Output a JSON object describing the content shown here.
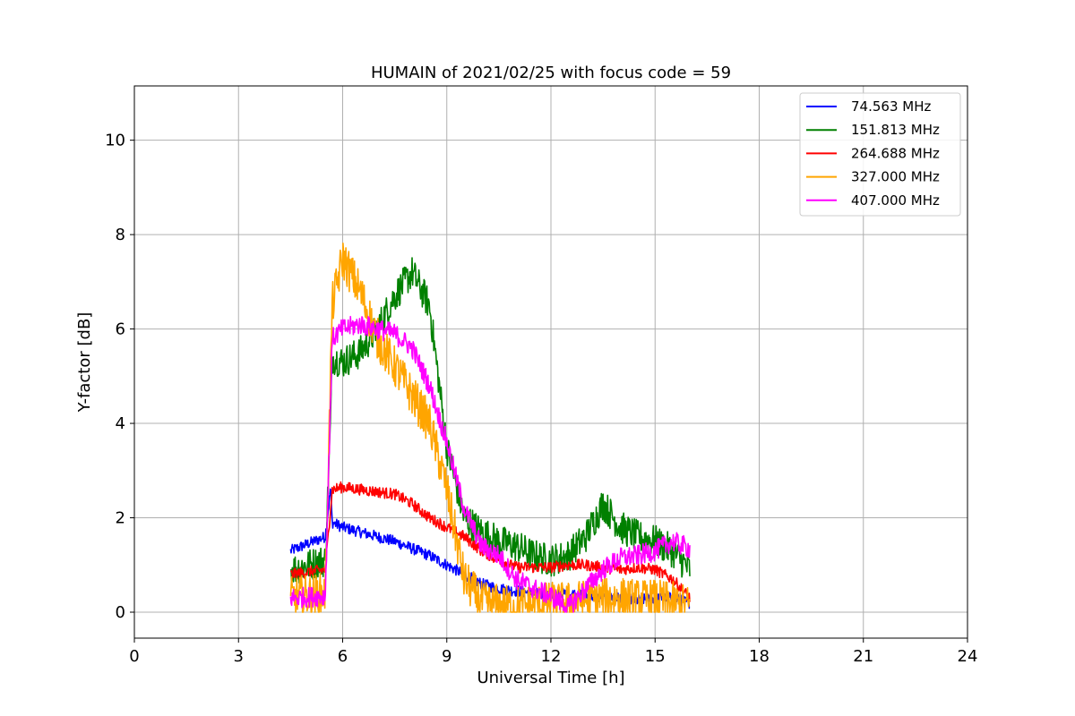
{
  "chart_data": {
    "type": "line",
    "title": "HUMAIN of 2021/02/25 with focus code = 59",
    "xlabel": "Universal Time [h]",
    "ylabel": "Y-factor [dB]",
    "xlim": [
      0,
      24
    ],
    "ylim": [
      -0.55,
      11.15
    ],
    "xticks": [
      0,
      3,
      6,
      9,
      12,
      15,
      18,
      21,
      24
    ],
    "yticks": [
      0,
      2,
      4,
      6,
      8,
      10
    ],
    "grid": true,
    "legend_position": "top-right",
    "series": [
      {
        "name": "74.563 MHz",
        "legend_label": " 74.563 MHz",
        "color": "#0000ff",
        "noise": 0.12,
        "x": [
          4.5,
          5.0,
          5.5,
          5.65,
          5.7,
          6.0,
          6.5,
          7.0,
          7.5,
          8.0,
          8.5,
          9.0,
          9.5,
          10.0,
          10.5,
          11.0,
          11.5,
          12.0,
          12.5,
          13.0,
          13.5,
          14.0,
          14.5,
          15.0,
          15.5,
          16.0
        ],
        "y": [
          1.3,
          1.45,
          1.6,
          2.6,
          1.9,
          1.8,
          1.7,
          1.6,
          1.5,
          1.35,
          1.2,
          1.0,
          0.8,
          0.6,
          0.5,
          0.45,
          0.4,
          0.35,
          0.4,
          0.35,
          0.3,
          0.3,
          0.25,
          0.3,
          0.3,
          0.2
        ]
      },
      {
        "name": "151.813 MHz",
        "legend_label": "151.813 MHz",
        "color": "#008000",
        "noise": 0.35,
        "x": [
          4.5,
          5.0,
          5.5,
          5.65,
          5.7,
          6.0,
          6.5,
          7.0,
          7.5,
          8.0,
          8.5,
          9.0,
          9.5,
          10.0,
          10.5,
          11.0,
          11.5,
          12.0,
          12.5,
          13.0,
          13.5,
          14.0,
          14.5,
          15.0,
          15.5,
          16.0
        ],
        "y": [
          0.9,
          1.0,
          1.1,
          4.0,
          5.4,
          5.3,
          5.5,
          6.0,
          6.7,
          7.2,
          6.5,
          3.5,
          2.0,
          1.7,
          1.5,
          1.4,
          1.2,
          1.1,
          1.2,
          1.6,
          2.3,
          1.8,
          1.6,
          1.5,
          1.3,
          0.9
        ]
      },
      {
        "name": "264.688 MHz",
        "legend_label": "264.688 MHz",
        "color": "#ff0000",
        "noise": 0.12,
        "x": [
          4.5,
          5.0,
          5.5,
          5.65,
          5.7,
          6.0,
          6.5,
          7.0,
          7.5,
          8.0,
          8.5,
          9.0,
          9.5,
          10.0,
          10.5,
          11.0,
          11.5,
          12.0,
          12.5,
          13.0,
          13.5,
          14.0,
          14.5,
          15.0,
          15.5,
          16.0
        ],
        "y": [
          0.8,
          0.85,
          0.9,
          2.2,
          2.6,
          2.65,
          2.6,
          2.55,
          2.5,
          2.3,
          2.0,
          1.8,
          1.6,
          1.3,
          1.1,
          0.95,
          0.95,
          0.95,
          1.0,
          1.0,
          0.95,
          0.9,
          0.95,
          0.9,
          0.7,
          0.3
        ]
      },
      {
        "name": "327.000 MHz",
        "legend_label": "327.000 MHz",
        "color": "#ffa500",
        "noise": 0.45,
        "x": [
          4.5,
          5.0,
          5.5,
          5.65,
          5.7,
          6.0,
          6.5,
          7.0,
          7.5,
          8.0,
          8.5,
          9.0,
          9.5,
          10.0,
          10.5,
          11.0,
          11.5,
          12.0,
          12.5,
          13.0,
          13.5,
          14.0,
          14.5,
          15.0,
          15.5,
          16.0
        ],
        "y": [
          0.3,
          0.35,
          0.4,
          5.0,
          6.5,
          7.5,
          6.8,
          5.8,
          5.2,
          4.6,
          4.0,
          2.6,
          0.7,
          0.2,
          0.15,
          0.12,
          0.15,
          0.2,
          0.2,
          0.25,
          0.3,
          0.3,
          0.25,
          0.25,
          0.2,
          0.12
        ]
      },
      {
        "name": "407.000 MHz",
        "legend_label": "407.000 MHz",
        "color": "#ff00ff",
        "noise": 0.22,
        "x": [
          4.5,
          5.0,
          5.5,
          5.65,
          5.7,
          6.0,
          6.5,
          7.0,
          7.5,
          8.0,
          8.5,
          9.0,
          9.5,
          10.0,
          10.5,
          11.0,
          11.5,
          12.0,
          12.5,
          13.0,
          13.5,
          14.0,
          14.5,
          15.0,
          15.5,
          16.0
        ],
        "y": [
          0.3,
          0.32,
          0.35,
          4.5,
          5.8,
          6.0,
          6.1,
          6.0,
          5.9,
          5.6,
          4.8,
          3.6,
          2.2,
          1.4,
          1.2,
          0.7,
          0.5,
          0.35,
          0.1,
          0.5,
          0.9,
          1.15,
          1.2,
          1.3,
          1.5,
          1.35
        ]
      }
    ]
  }
}
